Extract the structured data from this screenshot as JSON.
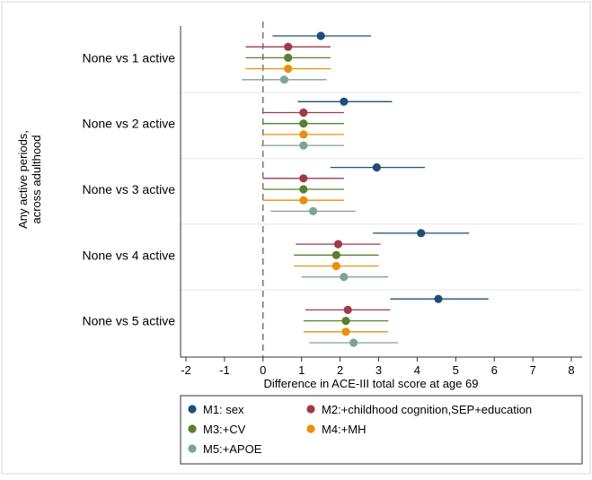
{
  "chart_data": {
    "type": "scatter",
    "subtype": "forest-plot",
    "title": "",
    "xlabel": "Difference in ACE-III total score at age 69",
    "ylabel": "Any active periods, across adulthood",
    "xlim": [
      -2,
      8
    ],
    "xticks": [
      -2,
      -1,
      0,
      1,
      2,
      3,
      4,
      5,
      6,
      7,
      8
    ],
    "reference_line": 0,
    "grid": "horizontal separators between groups",
    "legend_position": "bottom",
    "colors": {
      "M1": "#1f4e79",
      "M2": "#9e3a4b",
      "M3": "#5b7f2e",
      "M4": "#e8900c",
      "M5": "#7fa39a"
    },
    "categories": [
      "None vs 1 active",
      "None vs 2 active",
      "None vs 3 active",
      "None vs 4 active",
      "None vs 5 active"
    ],
    "series": [
      {
        "key": "M1",
        "name": "M1: sex",
        "estimates": [
          1.5,
          2.1,
          2.95,
          4.1,
          4.55
        ],
        "ci_low": [
          0.25,
          0.9,
          1.75,
          2.85,
          3.3
        ],
        "ci_high": [
          2.8,
          3.35,
          4.2,
          5.35,
          5.85
        ]
      },
      {
        "key": "M2",
        "name": "M2:+childhood cognition,SEP+education",
        "estimates": [
          0.65,
          1.05,
          1.05,
          1.95,
          2.2
        ],
        "ci_low": [
          -0.45,
          0.0,
          0.0,
          0.85,
          1.1
        ],
        "ci_high": [
          1.75,
          2.1,
          2.1,
          3.05,
          3.3
        ]
      },
      {
        "key": "M3",
        "name": "M3:+CV",
        "estimates": [
          0.65,
          1.05,
          1.05,
          1.9,
          2.15
        ],
        "ci_low": [
          -0.45,
          0.0,
          0.0,
          0.8,
          1.05
        ],
        "ci_high": [
          1.75,
          2.1,
          2.1,
          3.0,
          3.25
        ]
      },
      {
        "key": "M4",
        "name": "M4:+MH",
        "estimates": [
          0.65,
          1.05,
          1.05,
          1.9,
          2.15
        ],
        "ci_low": [
          -0.45,
          0.0,
          0.0,
          0.8,
          1.05
        ],
        "ci_high": [
          1.75,
          2.1,
          2.1,
          3.0,
          3.25
        ]
      },
      {
        "key": "M5",
        "name": "M5:+APOE",
        "estimates": [
          0.55,
          1.05,
          1.3,
          2.1,
          2.35
        ],
        "ci_low": [
          -0.55,
          -0.05,
          0.2,
          1.0,
          1.2
        ],
        "ci_high": [
          1.65,
          2.1,
          2.4,
          3.25,
          3.5
        ]
      }
    ]
  }
}
